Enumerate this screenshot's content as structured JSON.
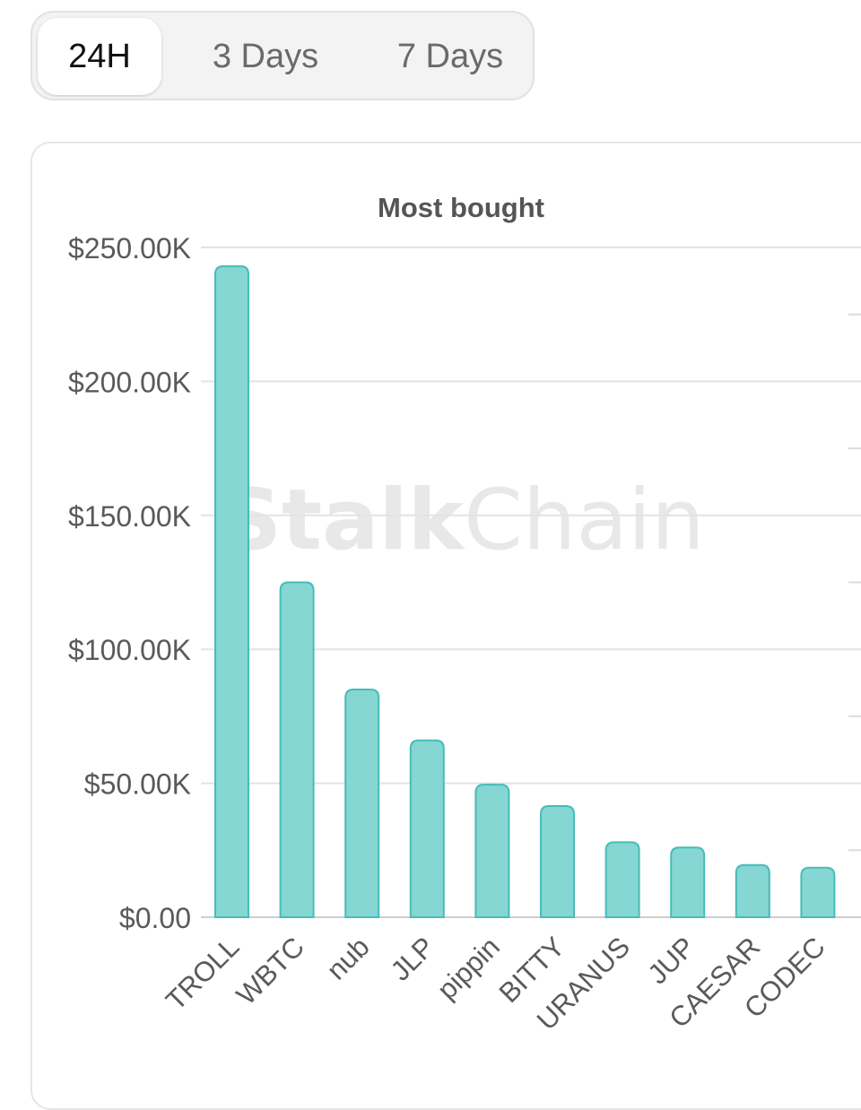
{
  "tabs": [
    {
      "label": "24H",
      "active": true
    },
    {
      "label": "3 Days",
      "active": false
    },
    {
      "label": "7 Days",
      "active": false
    }
  ],
  "watermark": {
    "bold": "Stalk",
    "light": "Chain"
  },
  "chart_data": {
    "type": "bar",
    "title": "Most bought",
    "categories": [
      "TROLL",
      "WBTC",
      "nub",
      "JLP",
      "pippin",
      "BITTY",
      "URANUS",
      "JUP",
      "CAESAR",
      "CODEC"
    ],
    "values": [
      243000,
      125000,
      85000,
      66000,
      49500,
      41500,
      28000,
      26000,
      19500,
      18500
    ],
    "ylim": [
      0,
      250000
    ],
    "yticks": [
      0,
      50000,
      100000,
      150000,
      200000,
      250000
    ],
    "ytick_labels": [
      "$0.00",
      "$50.00K",
      "$100.00K",
      "$150.00K",
      "$200.00K",
      "$250.00K"
    ],
    "xlabel": "",
    "ylabel": "",
    "grid": true,
    "bar_color": "#86d6d3",
    "bar_edge_color": "#45bdb8"
  }
}
